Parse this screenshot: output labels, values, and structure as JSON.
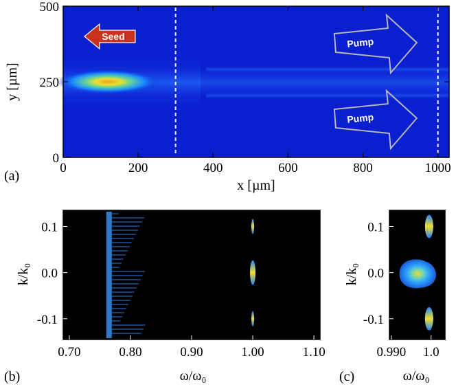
{
  "chart_data": [
    {
      "panel": "(a)",
      "type": "heatmap",
      "xlabel": "x [µm]",
      "ylabel": "y [µm]",
      "xlim": [
        0,
        1030
      ],
      "ylim": [
        0,
        500
      ],
      "xticks": [
        0,
        200,
        400,
        600,
        800,
        1000
      ],
      "yticks": [
        0,
        250,
        500
      ],
      "vlines": [
        300,
        1000
      ],
      "annotations": [
        {
          "text": "Seed",
          "direction": "left",
          "x": 130,
          "y": 400
        },
        {
          "text": "Pump",
          "direction": "right",
          "x": 830,
          "y": 375
        },
        {
          "text": "Pump",
          "direction": "right",
          "x": 830,
          "y": 125
        }
      ],
      "hotspot": {
        "x": 120,
        "y": 250
      }
    },
    {
      "panel": "(b)",
      "type": "heatmap",
      "xlabel": "ω/ω₀",
      "ylabel": "k/k₀",
      "xlim": [
        0.69,
        1.11
      ],
      "ylim": [
        -0.145,
        0.135
      ],
      "xticks": [
        "0.70",
        "0.80",
        "0.90",
        "1.00",
        "1.10"
      ],
      "yticks": [
        "0.1",
        "0.0",
        "-0.1"
      ],
      "features": [
        {
          "omega": 0.765,
          "k": 0.0
        },
        {
          "omega": 1.0,
          "k": 0.1
        },
        {
          "omega": 1.0,
          "k": 0.0
        },
        {
          "omega": 1.0,
          "k": -0.1
        }
      ]
    },
    {
      "panel": "(c)",
      "type": "heatmap",
      "xlabel": "ω/ω₀",
      "ylabel": "k/k₀",
      "xlim": [
        0.9895,
        1.0035
      ],
      "ylim": [
        -0.145,
        0.135
      ],
      "xticks": [
        "0.990",
        "1.0"
      ],
      "yticks": [
        "0.1",
        "0.0",
        "-0.1"
      ],
      "features": [
        {
          "omega": 0.9995,
          "k": 0.1
        },
        {
          "omega": 0.997,
          "k": 0.0
        },
        {
          "omega": 0.9995,
          "k": -0.1
        }
      ]
    }
  ]
}
